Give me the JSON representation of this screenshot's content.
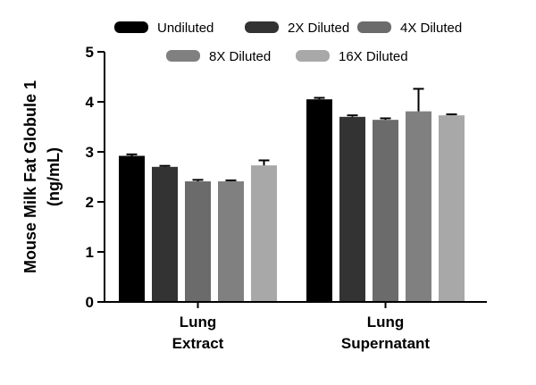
{
  "chart_data": {
    "type": "bar",
    "title": "",
    "xlabel": "",
    "ylabel_lines": [
      "Mouse Milk Fat Globule 1",
      "(ng/mL)"
    ],
    "ylim": [
      0,
      5
    ],
    "yticks": [
      0,
      1,
      2,
      3,
      4,
      5
    ],
    "grid": false,
    "legend_position": "top",
    "categories": [
      {
        "name": "Lung Extract",
        "lines": [
          "Lung",
          "Extract"
        ]
      },
      {
        "name": "Lung Supernatant",
        "lines": [
          "Lung",
          "Supernatant"
        ]
      }
    ],
    "series": [
      {
        "name": "Undiluted",
        "color": "#000000",
        "values": [
          2.92,
          4.05
        ],
        "errors": [
          0.03,
          0.03
        ]
      },
      {
        "name": "2X Diluted",
        "color": "#333333",
        "values": [
          2.7,
          3.7
        ],
        "errors": [
          0.02,
          0.03
        ]
      },
      {
        "name": "4X Diluted",
        "color": "#6b6b6b",
        "values": [
          2.41,
          3.64
        ],
        "errors": [
          0.03,
          0.03
        ]
      },
      {
        "name": "8X Diluted",
        "color": "#808080",
        "values": [
          2.41,
          3.81
        ],
        "errors": [
          0.02,
          0.45
        ]
      },
      {
        "name": "16X Diluted",
        "color": "#a8a8a8",
        "values": [
          2.73,
          3.73
        ],
        "errors": [
          0.1,
          0.02
        ]
      }
    ]
  }
}
